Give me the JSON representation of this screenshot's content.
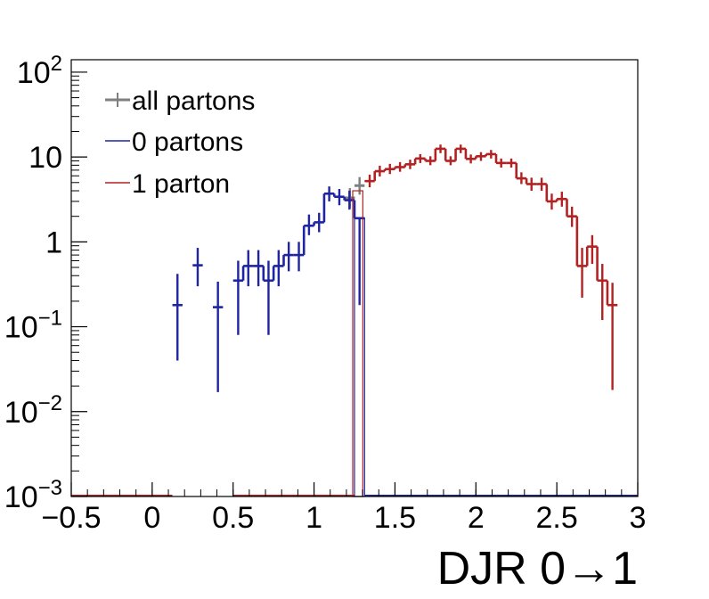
{
  "chart_data": {
    "type": "line",
    "subtype": "step-histogram",
    "title": "",
    "xlabel": "DJR 0→1",
    "ylabel": "",
    "xlim": [
      -0.5,
      3.0
    ],
    "ylim": [
      0.001,
      140
    ],
    "yscale": "log",
    "grid": false,
    "legend_position": "top-left",
    "bin_width": 0.0625,
    "x_ticks": [
      "−0.5",
      "0",
      "0.5",
      "1",
      "1.5",
      "2",
      "2.5",
      "3"
    ],
    "y_ticks": [
      {
        "base": "10",
        "exp": "−3",
        "value": 0.001
      },
      {
        "base": "10",
        "exp": "−2",
        "value": 0.01
      },
      {
        "base": "10",
        "exp": "−1",
        "value": 0.1
      },
      {
        "base": "1",
        "exp": "",
        "value": 1
      },
      {
        "base": "10",
        "exp": "",
        "value": 10
      },
      {
        "base": "10",
        "exp": "2",
        "value": 100
      }
    ],
    "series": [
      {
        "name": "all partons",
        "color": "#7f7f7f",
        "values": [
          [
            1.19,
            3.3,
            2.5,
            4.3
          ],
          [
            1.25,
            4.6,
            3.6,
            5.8
          ]
        ]
      },
      {
        "name": "0 partons",
        "color": "#1f24a0",
        "values": [
          [
            0.125,
            0.18,
            0.04,
            0.42
          ],
          [
            0.25,
            0.53,
            0.3,
            0.85
          ],
          [
            0.375,
            0.17,
            0.017,
            0.34
          ],
          [
            0.5,
            0.35,
            0.08,
            0.6
          ],
          [
            0.5625,
            0.52,
            0.3,
            0.8
          ],
          [
            0.625,
            0.52,
            0.3,
            0.8
          ],
          [
            0.6875,
            0.35,
            0.08,
            0.6
          ],
          [
            0.75,
            0.52,
            0.3,
            0.8
          ],
          [
            0.8125,
            0.7,
            0.45,
            1.0
          ],
          [
            0.875,
            0.7,
            0.45,
            1.0
          ],
          [
            0.9375,
            1.55,
            1.2,
            2.1
          ],
          [
            1.0,
            1.7,
            1.3,
            2.2
          ],
          [
            1.0625,
            3.7,
            3.0,
            4.5
          ],
          [
            1.125,
            3.4,
            2.7,
            4.2
          ],
          [
            1.1875,
            3.1,
            2.4,
            4.0
          ],
          [
            1.25,
            1.9,
            0.18,
            1.9
          ]
        ]
      },
      {
        "name": "1 parton",
        "color": "#b22222",
        "values": [
          [
            1.3125,
            5.2,
            4.4,
            6.2
          ],
          [
            1.375,
            6.8,
            5.9,
            7.9
          ],
          [
            1.4375,
            7.2,
            6.3,
            8.3
          ],
          [
            1.5,
            7.6,
            6.7,
            8.7
          ],
          [
            1.5625,
            8.2,
            7.2,
            9.3
          ],
          [
            1.625,
            9.6,
            8.5,
            10.8
          ],
          [
            1.6875,
            9.0,
            8.0,
            10.2
          ],
          [
            1.75,
            12.5,
            11.1,
            14.0
          ],
          [
            1.8125,
            9.0,
            8.0,
            10.2
          ],
          [
            1.875,
            12.5,
            11.1,
            14.0
          ],
          [
            1.9375,
            9.5,
            8.4,
            10.7
          ],
          [
            2.0,
            10.2,
            9.0,
            11.4
          ],
          [
            2.0625,
            10.8,
            9.6,
            12.1
          ],
          [
            2.125,
            8.5,
            7.5,
            9.6
          ],
          [
            2.1875,
            8.5,
            7.5,
            9.6
          ],
          [
            2.25,
            5.6,
            4.8,
            6.6
          ],
          [
            2.3125,
            4.8,
            4.0,
            5.7
          ],
          [
            2.375,
            4.8,
            4.0,
            5.7
          ],
          [
            2.4375,
            3.0,
            2.4,
            3.7
          ],
          [
            2.5,
            3.2,
            2.6,
            3.9
          ],
          [
            2.5625,
            2.0,
            1.5,
            2.6
          ],
          [
            2.625,
            0.52,
            0.22,
            0.85
          ],
          [
            2.6875,
            0.88,
            0.55,
            1.2
          ],
          [
            2.75,
            0.35,
            0.12,
            0.55
          ],
          [
            2.8125,
            0.18,
            0.018,
            0.33
          ]
        ]
      }
    ]
  }
}
